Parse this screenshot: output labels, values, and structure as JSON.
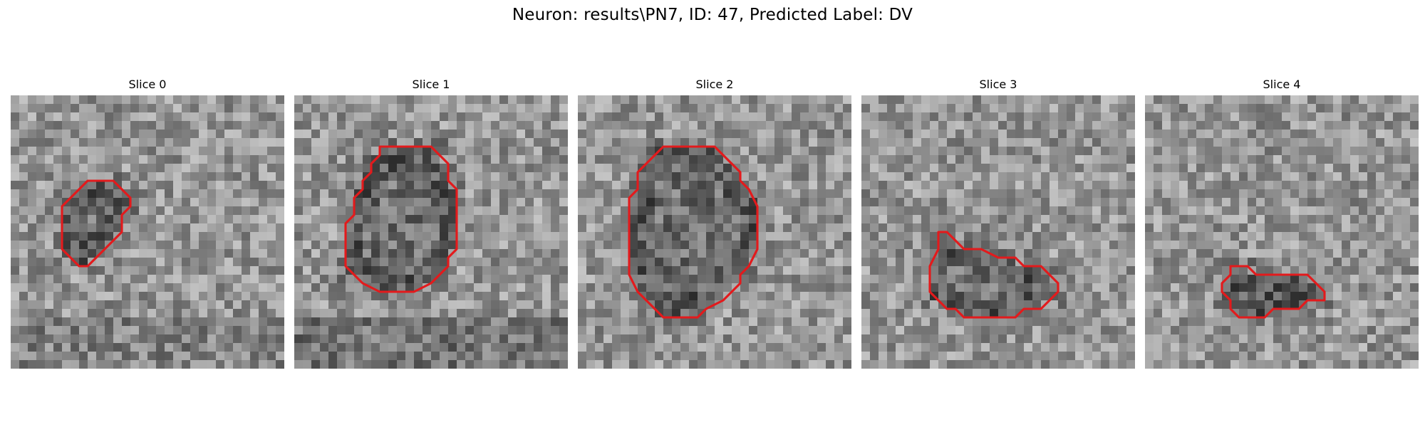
{
  "title": "Neuron: results\\PN7, ID: 47, Predicted Label: DV",
  "image": {
    "grid": 32,
    "contour_color": "#e31a1c",
    "colormap": "gray"
  },
  "slices": [
    {
      "label": "Slice 0",
      "contour": [
        [
          10,
          10
        ],
        [
          12,
          10
        ],
        [
          13,
          11
        ],
        [
          14,
          12
        ],
        [
          14,
          13
        ],
        [
          13,
          14
        ],
        [
          13,
          16
        ],
        [
          12,
          17
        ],
        [
          11,
          18
        ],
        [
          10,
          19
        ],
        [
          9,
          20
        ],
        [
          8,
          20
        ],
        [
          7,
          19
        ],
        [
          6,
          18
        ],
        [
          6,
          15
        ],
        [
          6,
          13
        ],
        [
          7,
          12
        ],
        [
          8,
          11
        ],
        [
          9,
          10
        ]
      ]
    },
    {
      "label": "Slice 1",
      "contour": [
        [
          10,
          6
        ],
        [
          11,
          6
        ],
        [
          16,
          6
        ],
        [
          17,
          7
        ],
        [
          18,
          8
        ],
        [
          18,
          10
        ],
        [
          19,
          11
        ],
        [
          19,
          13
        ],
        [
          19,
          15
        ],
        [
          19,
          18
        ],
        [
          18,
          19
        ],
        [
          18,
          20
        ],
        [
          17,
          21
        ],
        [
          16,
          22
        ],
        [
          14,
          23
        ],
        [
          12,
          23
        ],
        [
          10,
          23
        ],
        [
          8,
          22
        ],
        [
          6,
          20
        ],
        [
          6,
          18
        ],
        [
          6,
          15
        ],
        [
          7,
          14
        ],
        [
          7,
          12
        ],
        [
          8,
          11
        ],
        [
          8,
          10
        ],
        [
          9,
          9
        ],
        [
          9,
          8
        ],
        [
          10,
          7
        ]
      ]
    },
    {
      "label": "Slice 2",
      "contour": [
        [
          10,
          6
        ],
        [
          13,
          6
        ],
        [
          16,
          6
        ],
        [
          17,
          7
        ],
        [
          18,
          8
        ],
        [
          19,
          9
        ],
        [
          19,
          10
        ],
        [
          20,
          11
        ],
        [
          21,
          13
        ],
        [
          21,
          15
        ],
        [
          21,
          18
        ],
        [
          20,
          20
        ],
        [
          19,
          21
        ],
        [
          19,
          22
        ],
        [
          18,
          23
        ],
        [
          17,
          24
        ],
        [
          15,
          25
        ],
        [
          14,
          26
        ],
        [
          12,
          26
        ],
        [
          10,
          26
        ],
        [
          9,
          25
        ],
        [
          8,
          24
        ],
        [
          7,
          23
        ],
        [
          6,
          21
        ],
        [
          6,
          19
        ],
        [
          6,
          15
        ],
        [
          6,
          12
        ],
        [
          7,
          11
        ],
        [
          7,
          9
        ],
        [
          8,
          8
        ],
        [
          9,
          7
        ]
      ]
    },
    {
      "label": "Slice 3",
      "contour": [
        [
          9,
          16
        ],
        [
          10,
          16
        ],
        [
          11,
          17
        ],
        [
          12,
          18
        ],
        [
          14,
          18
        ],
        [
          16,
          19
        ],
        [
          18,
          19
        ],
        [
          19,
          20
        ],
        [
          21,
          20
        ],
        [
          22,
          21
        ],
        [
          23,
          22
        ],
        [
          23,
          23
        ],
        [
          22,
          24
        ],
        [
          21,
          25
        ],
        [
          20,
          25
        ],
        [
          19,
          25
        ],
        [
          18,
          26
        ],
        [
          16,
          26
        ],
        [
          13,
          26
        ],
        [
          12,
          26
        ],
        [
          11,
          25
        ],
        [
          10,
          25
        ],
        [
          9,
          24
        ],
        [
          8,
          23
        ],
        [
          8,
          21
        ],
        [
          8,
          20
        ],
        [
          9,
          18
        ],
        [
          9,
          17
        ]
      ]
    },
    {
      "label": "Slice 4",
      "contour": [
        [
          10,
          20
        ],
        [
          12,
          20
        ],
        [
          13,
          21
        ],
        [
          14,
          21
        ],
        [
          17,
          21
        ],
        [
          18,
          21
        ],
        [
          19,
          21
        ],
        [
          20,
          22
        ],
        [
          21,
          23
        ],
        [
          21,
          24
        ],
        [
          20,
          24
        ],
        [
          19,
          24
        ],
        [
          18,
          25
        ],
        [
          16,
          25
        ],
        [
          15,
          25
        ],
        [
          14,
          26
        ],
        [
          12,
          26
        ],
        [
          11,
          26
        ],
        [
          10,
          25
        ],
        [
          10,
          24
        ],
        [
          9,
          23
        ],
        [
          9,
          22
        ],
        [
          10,
          21
        ]
      ]
    }
  ]
}
